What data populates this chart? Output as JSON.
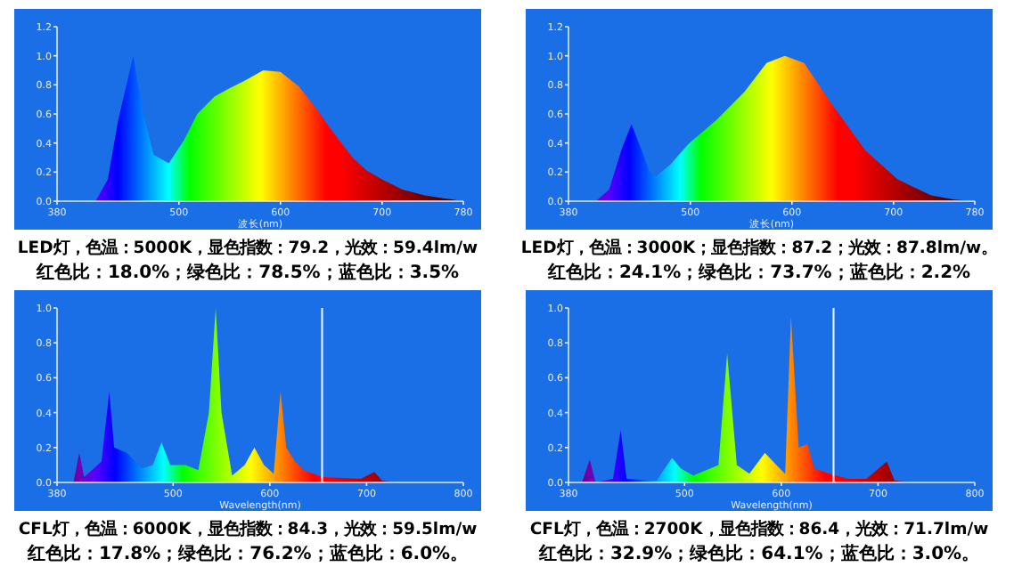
{
  "chart_data": [
    {
      "type": "area",
      "xlabel": "波长(nm)",
      "xlim": [
        380,
        780
      ],
      "xticks": [
        380,
        500,
        600,
        700,
        780
      ],
      "ylim": [
        0,
        1.2
      ],
      "yticks": [
        {
          "value": 0,
          "label": "0.0"
        },
        {
          "value": 0.2,
          "label": "0.2"
        },
        {
          "value": 0.4,
          "label": "0.4"
        },
        {
          "value": 0.6,
          "label": "0.6"
        },
        {
          "value": 0.8,
          "label": "0.8"
        },
        {
          "value": 1,
          "label": "1.0"
        },
        {
          "value": 1.2,
          "label": "1.2"
        }
      ],
      "series": [
        {
          "x": [
            380,
            418,
            430,
            440,
            455,
            465,
            475,
            490,
            505,
            518,
            535,
            548,
            565,
            583,
            600,
            618,
            635,
            648,
            660,
            671,
            685,
            700,
            720,
            742,
            760,
            780
          ],
          "values": [
            0,
            0,
            0.15,
            0.55,
            1.0,
            0.6,
            0.32,
            0.26,
            0.42,
            0.6,
            0.72,
            0.77,
            0.83,
            0.9,
            0.89,
            0.79,
            0.64,
            0.51,
            0.4,
            0.3,
            0.21,
            0.15,
            0.08,
            0.04,
            0.02,
            0
          ]
        }
      ],
      "annotations": [
        "LED灯，色温：5000K，显色指数：79.2，光效：59.4lm/w",
        "红色比：18.0%；绿色比：78.5%；蓝色比：3.5%"
      ]
    },
    {
      "type": "area",
      "xlabel": "波长(nm)",
      "xlim": [
        380,
        780
      ],
      "xticks": [
        380,
        500,
        600,
        700,
        780
      ],
      "ylim": [
        0,
        1.2
      ],
      "yticks": [
        {
          "value": 0,
          "label": "0.0"
        },
        {
          "value": 0.2,
          "label": "0.2"
        },
        {
          "value": 0.4,
          "label": "0.4"
        },
        {
          "value": 0.6,
          "label": "0.6"
        },
        {
          "value": 0.8,
          "label": "0.8"
        },
        {
          "value": 1,
          "label": "1.0"
        },
        {
          "value": 1.2,
          "label": "1.2"
        }
      ],
      "series": [
        {
          "x": [
            380,
            407,
            420,
            432,
            442,
            452,
            460,
            466,
            480,
            499,
            526,
            553,
            575,
            593,
            612,
            639,
            672,
            704,
            737,
            760,
            780
          ],
          "values": [
            0,
            0,
            0.08,
            0.35,
            0.53,
            0.35,
            0.2,
            0.17,
            0.25,
            0.4,
            0.56,
            0.75,
            0.95,
            1.0,
            0.95,
            0.67,
            0.35,
            0.15,
            0.04,
            0.01,
            0
          ]
        }
      ],
      "annotations": [
        "LED灯，色温：3000K；显色指数：87.2；光效：87.8lm/w。",
        "红色比：24.1%；绿色比：73.7%；蓝色比：2.2%"
      ]
    },
    {
      "type": "area",
      "xlabel": "Wavelength(nm)",
      "xlim": [
        380,
        800
      ],
      "xticks": [
        380,
        500,
        600,
        700,
        800
      ],
      "ylim": [
        0,
        1
      ],
      "yticks": [
        {
          "value": 0,
          "label": "0.0"
        },
        {
          "value": 0.2,
          "label": "0.2"
        },
        {
          "value": 0.4,
          "label": "0.4"
        },
        {
          "value": 0.6,
          "label": "0.6"
        },
        {
          "value": 0.8,
          "label": "0.8"
        },
        {
          "value": 1,
          "label": "1.0"
        }
      ],
      "series": [
        {
          "x": [
            380,
            397,
            403,
            408,
            426,
            434,
            439,
            452,
            468,
            479,
            488,
            497,
            513,
            526,
            537,
            544,
            550,
            561,
            574,
            584,
            594,
            604,
            611,
            617,
            626,
            635,
            655,
            694,
            708,
            716,
            732,
            800
          ],
          "values": [
            0,
            0,
            0.17,
            0.03,
            0.12,
            0.52,
            0.2,
            0.17,
            0.08,
            0.1,
            0.23,
            0.1,
            0.1,
            0.07,
            0.4,
            1.0,
            0.4,
            0.04,
            0.1,
            0.2,
            0.1,
            0.05,
            0.52,
            0.2,
            0.12,
            0.07,
            0.03,
            0.02,
            0.06,
            0.01,
            0,
            0
          ]
        }
      ],
      "ref_lines": [
        {
          "axis": "x",
          "value": 654,
          "color": "#ffffff"
        }
      ],
      "annotations": [
        "CFL灯，色温：6000K，显色指数：84.3，光效：59.5lm/w",
        "红色比：17.8%；绿色比：76.2%；蓝色比：6.0%。"
      ]
    },
    {
      "type": "area",
      "xlabel": "Wavelength(nm)",
      "xlim": [
        380,
        800
      ],
      "xticks": [
        380,
        500,
        600,
        700,
        800
      ],
      "ylim": [
        0,
        1
      ],
      "yticks": [
        {
          "value": 0,
          "label": "0.0"
        },
        {
          "value": 0.2,
          "label": "0.2"
        },
        {
          "value": 0.4,
          "label": "0.4"
        },
        {
          "value": 0.6,
          "label": "0.6"
        },
        {
          "value": 0.8,
          "label": "0.8"
        },
        {
          "value": 1,
          "label": "1.0"
        }
      ],
      "series": [
        {
          "x": [
            380,
            394,
            402,
            408,
            426,
            434,
            440,
            471,
            487,
            496,
            509,
            535,
            544,
            554,
            567,
            583,
            595,
            604,
            610,
            618,
            627,
            634,
            650,
            669,
            688,
            709,
            717,
            739,
            800
          ],
          "values": [
            0,
            0,
            0.13,
            0,
            0.02,
            0.3,
            0.02,
            0.01,
            0.14,
            0.08,
            0.04,
            0.1,
            0.74,
            0.1,
            0.05,
            0.17,
            0.1,
            0.05,
            0.95,
            0.2,
            0.22,
            0.08,
            0.05,
            0.02,
            0.02,
            0.12,
            0.01,
            0,
            0
          ]
        }
      ],
      "ref_lines": [
        {
          "axis": "x",
          "value": 654,
          "color": "#ffffff"
        }
      ],
      "annotations": [
        "CFL灯，色温：2700K，显色指数：86.4，光效：71.7lm/w",
        "红色比：32.9%；绿色比：64.1%；蓝色比：3.0%。"
      ]
    }
  ]
}
